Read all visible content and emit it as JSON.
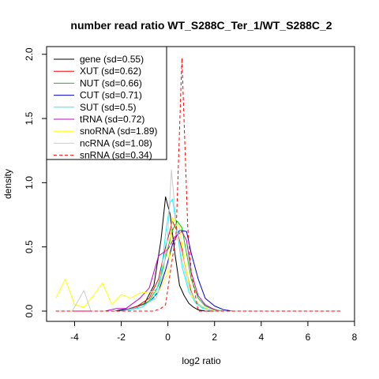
{
  "chart_data": {
    "type": "line",
    "title": "number read ratio WT_S288C_Ter_1/WT_S288C_2",
    "xlabel": "log2 ratio",
    "ylabel": "density",
    "xlim": [
      -5.2,
      8.0
    ],
    "ylim": [
      -0.08,
      2.06
    ],
    "x_ticks": [
      {
        "value": -4,
        "label": "-4"
      },
      {
        "value": -2,
        "label": "-2"
      },
      {
        "value": 0,
        "label": "0"
      },
      {
        "value": 2,
        "label": "2"
      },
      {
        "value": 4,
        "label": "4"
      },
      {
        "value": 6,
        "label": "6"
      },
      {
        "value": 8,
        "label": "8"
      }
    ],
    "y_ticks": [
      {
        "value": 0.0,
        "label": "0.0"
      },
      {
        "value": 0.5,
        "label": "0.5"
      },
      {
        "value": 1.0,
        "label": "1.0"
      },
      {
        "value": 1.5,
        "label": "1.5"
      },
      {
        "value": 2.0,
        "label": "2.0"
      }
    ],
    "grid": false,
    "legend_position": "top-left",
    "series": [
      {
        "name": "gene (sd=0.55)",
        "color": "#000000",
        "dash": false,
        "x": [
          -4.8,
          -2.3,
          -2.0,
          -1.5,
          -1.0,
          -0.6,
          -0.3,
          -0.1,
          0.1,
          0.3,
          0.5,
          0.7,
          0.9,
          1.1,
          1.3,
          1.6,
          2.0,
          7.4
        ],
        "y": [
          0,
          0,
          0.01,
          0.02,
          0.06,
          0.2,
          0.55,
          0.89,
          0.75,
          0.45,
          0.2,
          0.12,
          0.06,
          0.03,
          0.01,
          0,
          0,
          0
        ]
      },
      {
        "name": "XUT (sd=0.62)",
        "color": "#ff0000",
        "dash": false,
        "x": [
          -4.8,
          -2.2,
          -1.8,
          -1.3,
          -0.8,
          -0.4,
          -0.1,
          0.2,
          0.4,
          0.6,
          0.8,
          1.0,
          1.2,
          1.5,
          1.8,
          2.2,
          7.4
        ],
        "y": [
          0,
          0,
          0.01,
          0.04,
          0.1,
          0.25,
          0.5,
          0.7,
          0.62,
          0.48,
          0.3,
          0.15,
          0.07,
          0.03,
          0.01,
          0,
          0
        ]
      },
      {
        "name": "NUT (sd=0.66)",
        "color": "#00cc00",
        "dash": false,
        "x": [
          -4.8,
          -2.2,
          -1.8,
          -1.3,
          -0.8,
          -0.4,
          -0.1,
          0.2,
          0.4,
          0.6,
          0.8,
          1.0,
          1.3,
          1.6,
          2.0,
          2.4,
          7.4
        ],
        "y": [
          0,
          0,
          0.01,
          0.03,
          0.08,
          0.2,
          0.42,
          0.63,
          0.7,
          0.65,
          0.45,
          0.25,
          0.1,
          0.04,
          0.01,
          0,
          0
        ]
      },
      {
        "name": "CUT (sd=0.71)",
        "color": "#0000cc",
        "dash": false,
        "x": [
          -4.8,
          -2.2,
          -1.8,
          -1.3,
          -0.8,
          -0.4,
          -0.1,
          0.2,
          0.5,
          0.8,
          1.0,
          1.3,
          1.6,
          2.0,
          2.4,
          2.8,
          7.4
        ],
        "y": [
          0,
          0,
          0.01,
          0.03,
          0.07,
          0.15,
          0.32,
          0.52,
          0.63,
          0.62,
          0.45,
          0.25,
          0.1,
          0.04,
          0.01,
          0,
          0
        ]
      },
      {
        "name": "SUT (sd=0.5)",
        "color": "#00ffff",
        "dash": false,
        "x": [
          -4.8,
          -2.0,
          -1.6,
          -1.1,
          -0.6,
          -0.3,
          -0.1,
          0.1,
          0.2,
          0.4,
          0.6,
          0.9,
          1.2,
          1.5,
          1.8,
          2.2,
          7.4
        ],
        "y": [
          0,
          0,
          0.01,
          0.03,
          0.1,
          0.28,
          0.6,
          0.85,
          0.87,
          0.62,
          0.35,
          0.15,
          0.06,
          0.02,
          0.01,
          0,
          0
        ]
      },
      {
        "name": "tRNA (sd=0.72)",
        "color": "#cc00cc",
        "dash": false,
        "x": [
          -4.8,
          -2.7,
          -2.2,
          -1.8,
          -1.2,
          -0.8,
          -0.4,
          0.0,
          0.3,
          0.6,
          0.8,
          1.0,
          1.3,
          1.6,
          1.9,
          2.2,
          7.4
        ],
        "y": [
          0,
          0,
          0.02,
          0.02,
          0.1,
          0.18,
          0.43,
          0.48,
          0.58,
          0.62,
          0.55,
          0.3,
          0.12,
          0.05,
          0.02,
          0,
          0
        ]
      },
      {
        "name": "snoRNA (sd=1.89)",
        "color": "#ffff00",
        "dash": false,
        "x": [
          -4.8,
          -4.4,
          -4.0,
          -3.6,
          -3.2,
          -2.8,
          -2.4,
          -2.0,
          -1.6,
          -1.2,
          -0.8,
          -0.4,
          0.0,
          0.2,
          0.5,
          0.7,
          1.0,
          1.4,
          1.8,
          2.2,
          7.4
        ],
        "y": [
          0.1,
          0.25,
          0.05,
          0.03,
          0.12,
          0.22,
          0.05,
          0.13,
          0.1,
          0.14,
          0.15,
          0.15,
          0.3,
          0.73,
          0.65,
          0.4,
          0.12,
          0.04,
          0.01,
          0,
          0
        ]
      },
      {
        "name": "ncRNA (sd=1.08)",
        "color": "#cccccc",
        "dash": false,
        "x": [
          -4.8,
          -4.1,
          -3.6,
          -3.3,
          -3.0,
          -2.0,
          -1.5,
          -1.0,
          -0.5,
          -0.2,
          0.0,
          0.15,
          0.35,
          0.6,
          0.9,
          1.2,
          1.6,
          2.0,
          7.4
        ],
        "y": [
          0,
          0,
          0.16,
          0,
          0,
          0,
          0.02,
          0.05,
          0.1,
          0.3,
          0.6,
          1.1,
          0.7,
          0.4,
          0.18,
          0.07,
          0.02,
          0,
          0
        ]
      },
      {
        "name": "snRNA (sd=0.34)",
        "color": "#ff0000",
        "dash": true,
        "x": [
          -4.8,
          -0.6,
          -0.3,
          -0.1,
          0.1,
          0.35,
          0.6,
          0.85,
          1.0,
          1.3,
          7.4
        ],
        "y": [
          0,
          0,
          0.02,
          0.05,
          0.3,
          0.6,
          1.97,
          0.65,
          0.3,
          0,
          0
        ]
      }
    ]
  }
}
